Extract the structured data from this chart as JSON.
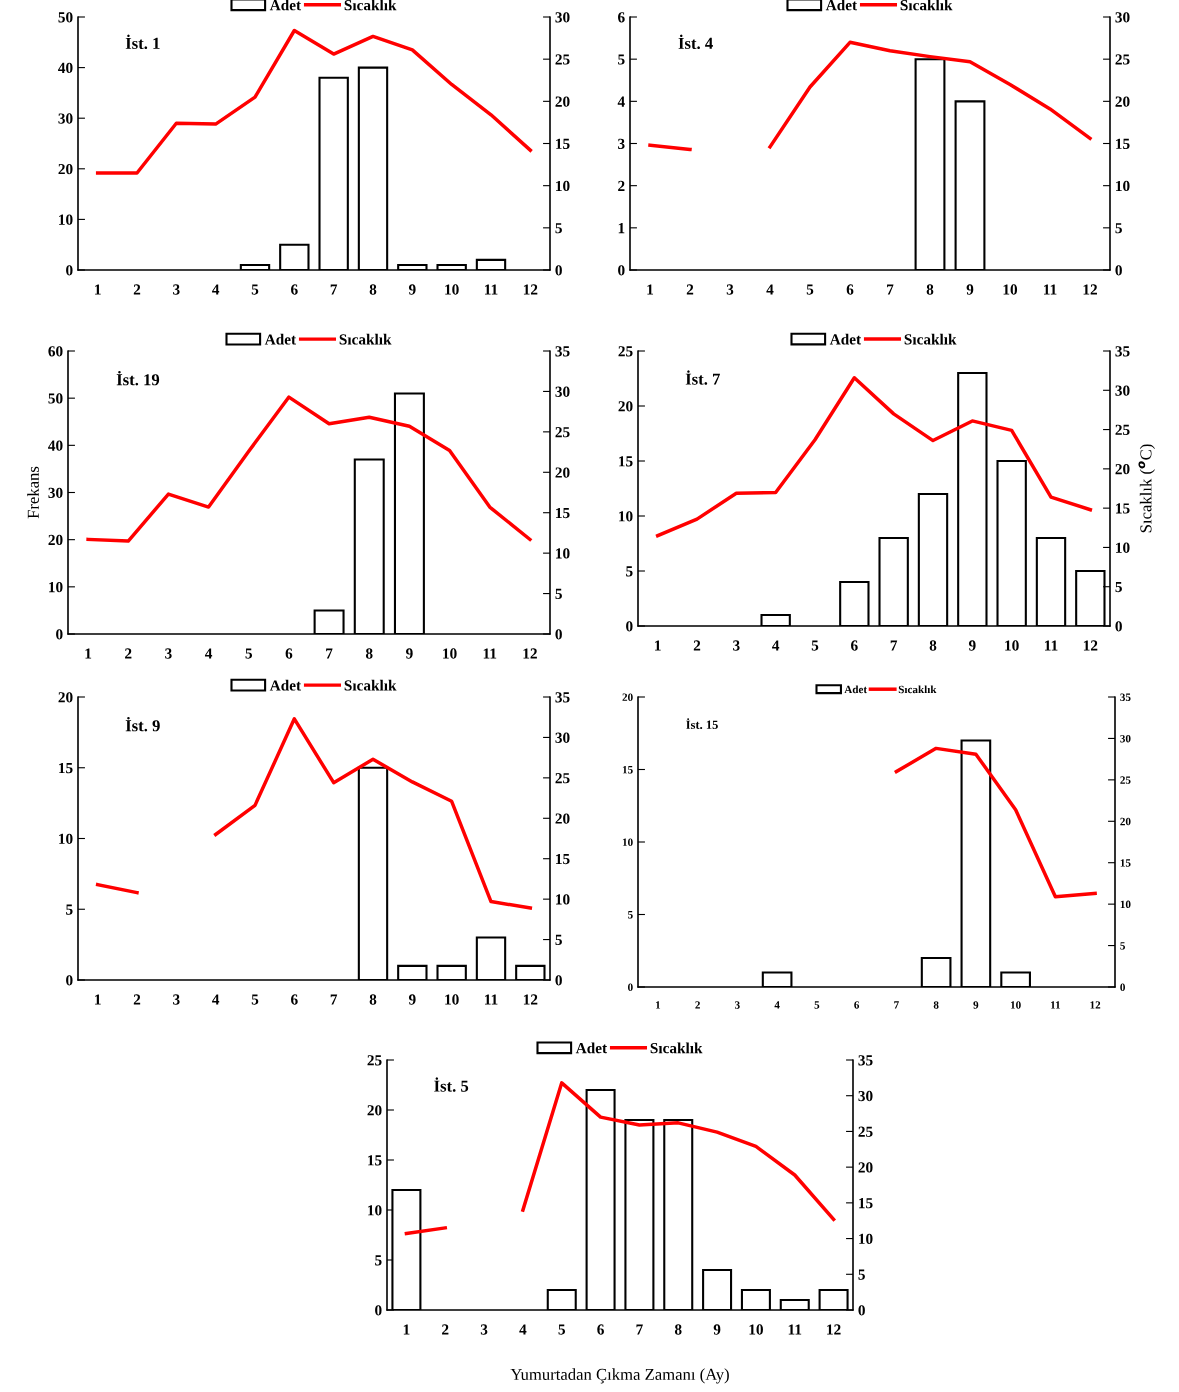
{
  "chart_data": [
    {
      "type": "bar",
      "categories": [
        "1",
        "2",
        "3",
        "4",
        "5",
        "6",
        "7",
        "8",
        "9",
        "10",
        "11",
        "12"
      ],
      "annotations": [
        "İst. 1"
      ],
      "ylim": [
        0,
        50
      ],
      "yticks": [
        0,
        10,
        20,
        30,
        40,
        50
      ],
      "y2lim": [
        0,
        30
      ],
      "y2ticks": [
        0,
        5,
        10,
        15,
        20,
        25,
        30
      ],
      "legend": "top",
      "series": [
        {
          "name": "Adet",
          "color": "#ffffff",
          "values": [
            null,
            null,
            null,
            null,
            1,
            5,
            38,
            40,
            1,
            1,
            2,
            null
          ]
        },
        {
          "name": "Sıcaklık",
          "type": "line",
          "axis": "y2",
          "color": "#ff0000",
          "values": [
            11.5,
            11.5,
            17.4,
            17.3,
            20.5,
            28.4,
            25.6,
            27.7,
            26.1,
            22,
            18.4,
            14.2
          ]
        }
      ]
    },
    {
      "type": "bar",
      "categories": [
        "1",
        "2",
        "3",
        "4",
        "5",
        "6",
        "7",
        "8",
        "9",
        "10",
        "11",
        "12"
      ],
      "annotations": [
        "İst. 4"
      ],
      "ylim": [
        0,
        6
      ],
      "yticks": [
        0,
        1,
        2,
        3,
        4,
        5,
        6
      ],
      "y2lim": [
        0,
        30
      ],
      "y2ticks": [
        0,
        5,
        10,
        15,
        20,
        25,
        30
      ],
      "legend": "top",
      "series": [
        {
          "name": "Adet",
          "color": "#ffffff",
          "values": [
            null,
            null,
            null,
            null,
            null,
            null,
            null,
            5,
            4,
            null,
            null,
            null
          ]
        },
        {
          "name": "Sıcaklık",
          "type": "line",
          "axis": "y2",
          "color": "#ff0000",
          "values": [
            14.8,
            14.3,
            null,
            14.6,
            21.7,
            27,
            26,
            25.3,
            24.7,
            22,
            19.1,
            15.6
          ]
        }
      ]
    },
    {
      "type": "bar",
      "categories": [
        "1",
        "2",
        "3",
        "4",
        "5",
        "6",
        "7",
        "8",
        "9",
        "10",
        "11",
        "12"
      ],
      "annotations": [
        "İst. 19"
      ],
      "ylabel": "Frekans",
      "ylim": [
        0,
        60
      ],
      "yticks": [
        0,
        10,
        20,
        30,
        40,
        50,
        60
      ],
      "y2lim": [
        0,
        35
      ],
      "y2ticks": [
        0,
        5,
        10,
        15,
        20,
        25,
        30,
        35
      ],
      "legend": "top",
      "series": [
        {
          "name": "Adet",
          "color": "#ffffff",
          "values": [
            null,
            null,
            null,
            null,
            null,
            null,
            5,
            37,
            51,
            null,
            null,
            null
          ]
        },
        {
          "name": "Sıcaklık",
          "type": "line",
          "axis": "y2",
          "color": "#ff0000",
          "values": [
            11.7,
            11.5,
            17.3,
            15.7,
            22.6,
            29.3,
            26,
            26.8,
            25.7,
            22.7,
            15.7,
            11.7
          ]
        }
      ]
    },
    {
      "type": "bar",
      "categories": [
        "1",
        "2",
        "3",
        "4",
        "5",
        "6",
        "7",
        "8",
        "9",
        "10",
        "11",
        "12"
      ],
      "annotations": [
        "İst. 7"
      ],
      "y2label": "Sıcaklık ($^{o}$C)",
      "ylim": [
        0,
        25
      ],
      "yticks": [
        0,
        5,
        10,
        15,
        20,
        25
      ],
      "y2lim": [
        0,
        35
      ],
      "y2ticks": [
        0,
        5,
        10,
        15,
        20,
        25,
        30,
        35
      ],
      "legend": "top",
      "series": [
        {
          "name": "Adet",
          "color": "#ffffff",
          "values": [
            null,
            null,
            null,
            1,
            null,
            4,
            8,
            12,
            23,
            15,
            8,
            5
          ]
        },
        {
          "name": "Sıcaklık",
          "type": "line",
          "axis": "y2",
          "color": "#ff0000",
          "values": [
            11.5,
            13.6,
            16.9,
            17,
            23.7,
            31.6,
            27,
            23.6,
            26.1,
            24.9,
            16.4,
            14.8
          ]
        }
      ]
    },
    {
      "type": "bar",
      "categories": [
        "1",
        "2",
        "3",
        "4",
        "5",
        "6",
        "7",
        "8",
        "9",
        "10",
        "11",
        "12"
      ],
      "annotations": [
        "İst. 9"
      ],
      "ylim": [
        0,
        20
      ],
      "yticks": [
        0,
        5,
        10,
        15,
        20
      ],
      "y2lim": [
        0,
        35
      ],
      "y2ticks": [
        0,
        5,
        10,
        15,
        20,
        25,
        30,
        35
      ],
      "legend": "top",
      "series": [
        {
          "name": "Adet",
          "color": "#ffffff",
          "values": [
            null,
            null,
            null,
            null,
            null,
            null,
            null,
            15,
            1,
            1,
            3,
            1
          ]
        },
        {
          "name": "Sıcaklık",
          "type": "line",
          "axis": "y2",
          "color": "#ff0000",
          "values": [
            11.8,
            10.8,
            null,
            18,
            21.6,
            32.3,
            24.4,
            27.3,
            24.5,
            22.1,
            9.7,
            8.9
          ]
        }
      ]
    },
    {
      "type": "bar",
      "categories": [
        "1",
        "2",
        "3",
        "4",
        "5",
        "6",
        "7",
        "8",
        "9",
        "10",
        "11",
        "12"
      ],
      "annotations": [
        "İst. 15"
      ],
      "ylim": [
        0,
        20
      ],
      "yticks": [
        0,
        5,
        10,
        15,
        20
      ],
      "y2lim": [
        0,
        35
      ],
      "y2ticks": [
        0,
        5,
        10,
        15,
        20,
        25,
        30,
        35
      ],
      "legend": "top",
      "series": [
        {
          "name": "Adet",
          "color": "#ffffff",
          "values": [
            null,
            null,
            null,
            1,
            null,
            null,
            null,
            2,
            17,
            1,
            null,
            null
          ]
        },
        {
          "name": "Sıcaklık",
          "type": "line",
          "axis": "y2",
          "color": "#ff0000",
          "values": [
            null,
            null,
            null,
            null,
            null,
            null,
            26,
            28.8,
            28.1,
            21.4,
            10.9,
            11.3
          ]
        }
      ]
    },
    {
      "type": "bar",
      "categories": [
        "1",
        "2",
        "3",
        "4",
        "5",
        "6",
        "7",
        "8",
        "9",
        "10",
        "11",
        "12"
      ],
      "annotations": [
        "İst. 5"
      ],
      "xlabel": "Yumurtadan Çıkma Zamanı (Ay)",
      "ylim": [
        0,
        25
      ],
      "yticks": [
        0,
        5,
        10,
        15,
        20,
        25
      ],
      "y2lim": [
        0,
        35
      ],
      "y2ticks": [
        0,
        5,
        10,
        15,
        20,
        25,
        30,
        35
      ],
      "legend": "top",
      "series": [
        {
          "name": "Adet",
          "color": "#ffffff",
          "values": [
            12,
            null,
            null,
            null,
            2,
            22,
            19,
            19,
            4,
            2,
            1,
            2
          ]
        },
        {
          "name": "Sıcaklık",
          "type": "line",
          "axis": "y2",
          "color": "#ff0000",
          "values": [
            10.7,
            11.5,
            null,
            14,
            31.8,
            27,
            25.9,
            26.2,
            24.9,
            22.9,
            18.9,
            12.7
          ]
        }
      ]
    }
  ]
}
